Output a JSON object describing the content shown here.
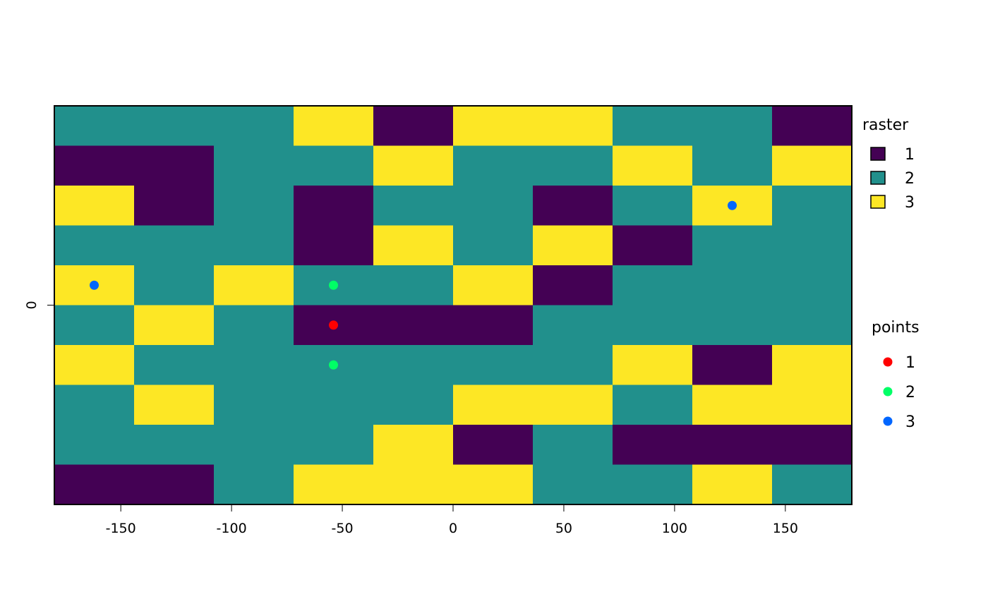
{
  "chart_data": {
    "type": "heatmap",
    "title": "",
    "xlabel": "",
    "ylabel": "",
    "xlim": [
      -180,
      180
    ],
    "ylim": [
      -90,
      90
    ],
    "ncol": 10,
    "nrow": 10,
    "x_ticks": [
      -150,
      -100,
      -50,
      0,
      50,
      100,
      150
    ],
    "x_tick_labels": [
      "-150",
      "-100",
      "-50",
      "0",
      "50",
      "100",
      "150"
    ],
    "y_ticks": [
      0
    ],
    "y_tick_labels": [
      "0"
    ],
    "raster_values": [
      [
        2,
        2,
        2,
        3,
        1,
        3,
        3,
        2,
        2,
        1
      ],
      [
        1,
        1,
        2,
        2,
        3,
        2,
        2,
        3,
        2,
        3
      ],
      [
        3,
        1,
        2,
        1,
        2,
        2,
        1,
        2,
        3,
        2
      ],
      [
        2,
        2,
        2,
        1,
        3,
        2,
        3,
        1,
        2,
        2
      ],
      [
        3,
        2,
        3,
        2,
        2,
        3,
        1,
        2,
        2,
        2
      ],
      [
        2,
        3,
        2,
        1,
        1,
        1,
        2,
        2,
        2,
        2
      ],
      [
        3,
        2,
        2,
        2,
        2,
        2,
        2,
        3,
        1,
        3
      ],
      [
        2,
        3,
        2,
        2,
        2,
        3,
        3,
        2,
        3,
        3
      ],
      [
        2,
        2,
        2,
        2,
        3,
        1,
        2,
        1,
        1,
        1
      ],
      [
        1,
        1,
        2,
        3,
        3,
        3,
        2,
        2,
        3,
        2
      ]
    ],
    "raster_colors": {
      "1": "#440154",
      "2": "#21908C",
      "3": "#FDE725"
    },
    "points": [
      {
        "x": 126,
        "y": 45,
        "value": 3
      },
      {
        "x": -162,
        "y": 9,
        "value": 3
      },
      {
        "x": -54,
        "y": 9,
        "value": 2
      },
      {
        "x": -54,
        "y": -9,
        "value": 1
      },
      {
        "x": -54,
        "y": -27,
        "value": 2
      }
    ],
    "point_colors": {
      "1": "#FF0000",
      "2": "#00FF66",
      "3": "#0066FF"
    },
    "legends": [
      {
        "title": "raster",
        "entries": [
          "1",
          "2",
          "3"
        ],
        "placement": "right-top"
      },
      {
        "title": "points",
        "entries": [
          "1",
          "2",
          "3"
        ],
        "placement": "right-middle"
      }
    ]
  }
}
